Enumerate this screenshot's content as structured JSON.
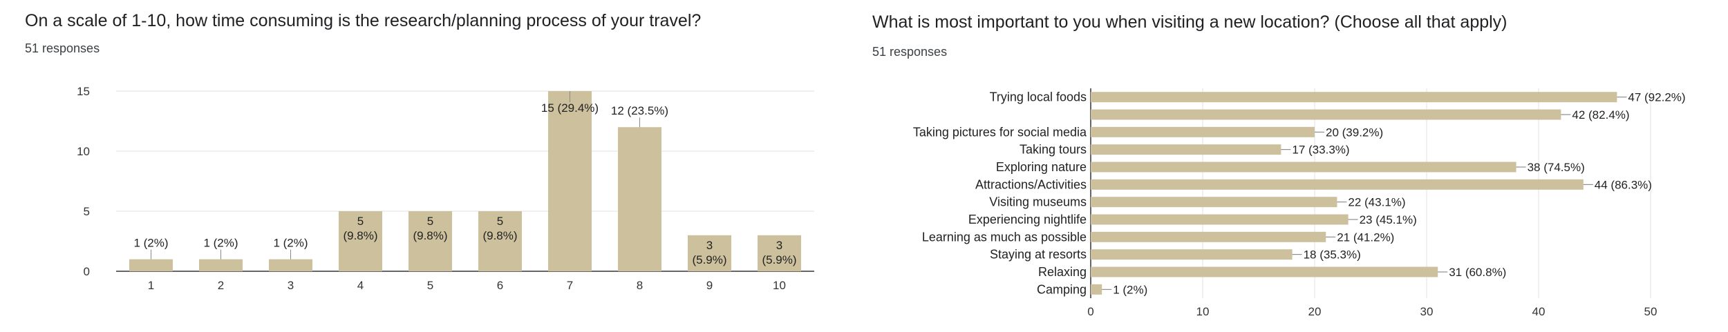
{
  "chart_data": [
    {
      "type": "bar",
      "title": "On a scale of 1-10, how time consuming is the research/planning process of your travel?",
      "subtitle": "51 responses",
      "categories": [
        "1",
        "2",
        "3",
        "4",
        "5",
        "6",
        "7",
        "8",
        "9",
        "10"
      ],
      "values": [
        1,
        1,
        1,
        5,
        5,
        5,
        15,
        12,
        3,
        3
      ],
      "data_labels": [
        [
          "1 (2%)"
        ],
        [
          "1 (2%)"
        ],
        [
          "1 (2%)"
        ],
        [
          "5",
          "(9.8%)"
        ],
        [
          "5",
          "(9.8%)"
        ],
        [
          "5",
          "(9.8%)"
        ],
        [
          "15 (29.4%)"
        ],
        [
          "12 (23.5%)"
        ],
        [
          "3",
          "(5.9%)"
        ],
        [
          "3",
          "(5.9%)"
        ]
      ],
      "yticks": [
        "0",
        "5",
        "10",
        "15"
      ],
      "ylim": [
        0,
        15
      ],
      "grid": true,
      "bar_color": "#cdc19d"
    },
    {
      "type": "bar",
      "orientation": "horizontal",
      "title": "What is most important to you when visiting a new location? (Choose all that apply)",
      "subtitle": "51 responses",
      "categories": [
        "Trying local foods",
        "",
        "Taking pictures for social media",
        "Taking tours",
        "Exploring nature",
        "Attractions/Activities",
        "Visiting museums",
        "Experiencing nightlife",
        "Learning as much as possible",
        "Staying at resorts",
        "Relaxing",
        "Camping"
      ],
      "values": [
        47,
        42,
        20,
        17,
        38,
        44,
        22,
        23,
        21,
        18,
        31,
        1
      ],
      "data_labels": [
        "47 (92.2%)",
        "42 (82.4%)",
        "20 (39.2%)",
        "17 (33.3%)",
        "38 (74.5%)",
        "44 (86.3%)",
        "22 (43.1%)",
        "23 (45.1%)",
        "21 (41.2%)",
        "18 (35.3%)",
        "31 (60.8%)",
        "1 (2%)"
      ],
      "xticks": [
        "0",
        "10",
        "20",
        "30",
        "40",
        "50"
      ],
      "xlim": [
        0,
        50
      ],
      "grid": true,
      "bar_color": "#cdc19d"
    }
  ]
}
